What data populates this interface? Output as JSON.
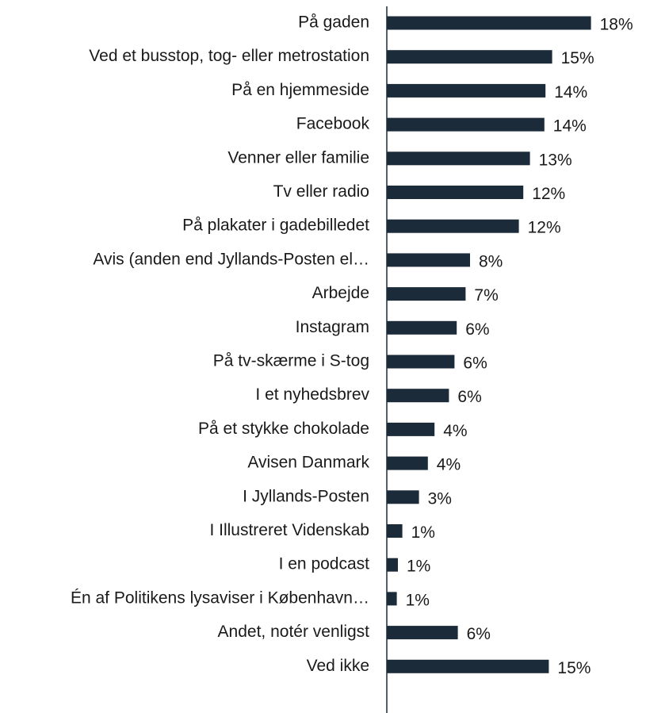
{
  "chart_data": {
    "type": "barh",
    "categories": [
      "På gaden",
      "Ved et busstop, tog- eller metrostation",
      "På en hjemmeside",
      "Facebook",
      "Venner eller familie",
      "Tv eller radio",
      "På plakater i gadebilledet",
      "Avis (anden end Jyllands-Posten el…",
      "Arbejde",
      "Instagram",
      "På tv-skærme i S-tog",
      "I et nyhedsbrev",
      "På et stykke chokolade",
      "Avisen Danmark",
      "I Jyllands-Posten",
      "I Illustreret Videnskab",
      "I en podcast",
      "Én af Politikens lysaviser i København…",
      "Andet, notér venligst",
      "Ved ikke"
    ],
    "values": [
      18.4,
      14.9,
      14.3,
      14.2,
      12.9,
      12.3,
      11.9,
      7.5,
      7.1,
      6.3,
      6.1,
      5.6,
      4.3,
      3.7,
      2.9,
      1.4,
      1.0,
      0.9,
      6.4,
      14.6
    ],
    "value_labels": [
      "18%",
      "15%",
      "14%",
      "14%",
      "13%",
      "12%",
      "12%",
      "8%",
      "7%",
      "6%",
      "6%",
      "6%",
      "4%",
      "4%",
      "3%",
      "1%",
      "1%",
      "1%",
      "6%",
      "15%"
    ],
    "color": "#1c2b39",
    "xlim": [
      0,
      20
    ]
  }
}
